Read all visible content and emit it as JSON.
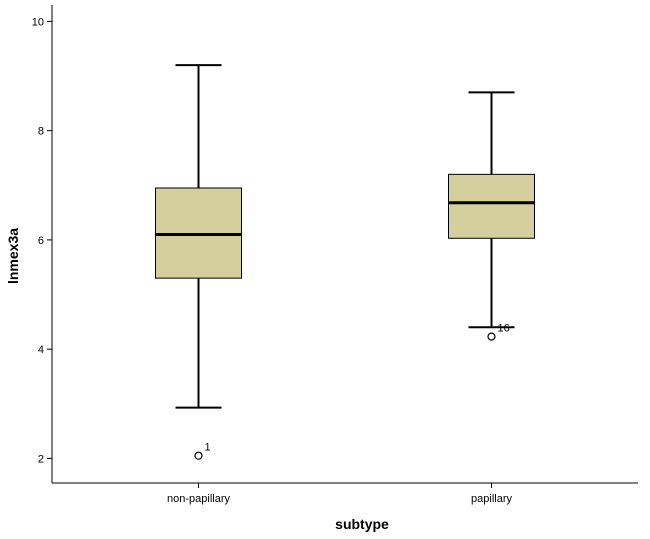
{
  "chart_data": {
    "type": "boxplot",
    "xlabel": "subtype",
    "ylabel": "lnmex3a",
    "ylim": [
      1.55,
      10.3
    ],
    "y_ticks": [
      2,
      4,
      6,
      8,
      10
    ],
    "grid": false,
    "box_color": "#d4cf9c",
    "categories": [
      "non-papillary",
      "papillary"
    ],
    "boxes": [
      {
        "category": "non-papillary",
        "whisker_low": 2.93,
        "q1": 5.3,
        "median": 6.1,
        "q3": 6.95,
        "whisker_high": 9.2,
        "outliers": [
          {
            "value": 2.05,
            "label": "1"
          }
        ]
      },
      {
        "category": "papillary",
        "whisker_low": 4.4,
        "q1": 6.03,
        "median": 6.68,
        "q3": 7.2,
        "whisker_high": 8.7,
        "outliers": [
          {
            "value": 4.23,
            "label": "16"
          }
        ]
      }
    ]
  }
}
